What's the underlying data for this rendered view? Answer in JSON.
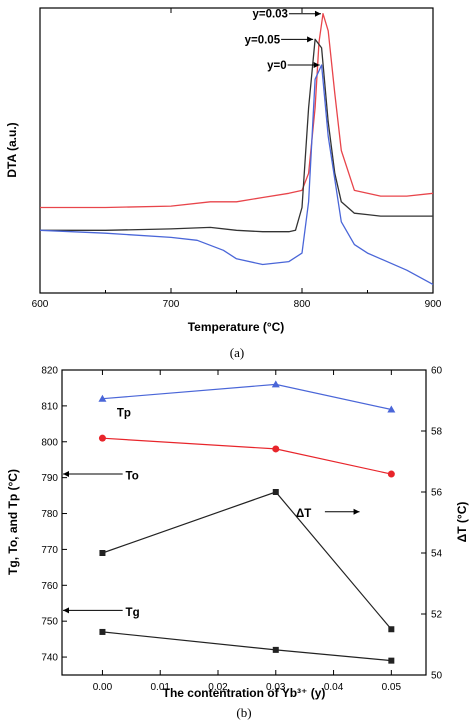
{
  "chart_data": [
    {
      "type": "line",
      "panel_label": "(a)",
      "xlabel": "Temperature (°C)",
      "ylabel": "DTA (a.u.)",
      "xlim": [
        600,
        900
      ],
      "x_ticks": [
        "600",
        "700",
        "800",
        "900"
      ],
      "y_ticks_labeled": false,
      "series": [
        {
          "name": "y=0.03",
          "color": "#e8454b",
          "x": [
            600,
            650,
            700,
            730,
            750,
            770,
            790,
            800,
            805,
            810,
            813,
            816,
            820,
            825,
            830,
            840,
            850,
            860,
            880,
            900
          ],
          "y": [
            0.3,
            0.3,
            0.305,
            0.32,
            0.32,
            0.335,
            0.35,
            0.36,
            0.42,
            0.65,
            0.88,
            0.98,
            0.92,
            0.7,
            0.5,
            0.36,
            0.35,
            0.34,
            0.34,
            0.35
          ]
        },
        {
          "name": "y=0.05",
          "color": "#333333",
          "x": [
            600,
            650,
            700,
            730,
            750,
            770,
            790,
            795,
            800,
            805,
            810,
            815,
            820,
            825,
            830,
            840,
            850,
            860,
            880,
            900
          ],
          "y": [
            0.22,
            0.22,
            0.225,
            0.23,
            0.22,
            0.215,
            0.215,
            0.22,
            0.3,
            0.65,
            0.89,
            0.86,
            0.6,
            0.42,
            0.32,
            0.28,
            0.275,
            0.27,
            0.27,
            0.27
          ]
        },
        {
          "name": "y=0",
          "color": "#4a66d8",
          "x": [
            600,
            650,
            700,
            720,
            740,
            750,
            770,
            790,
            800,
            805,
            810,
            815,
            820,
            830,
            840,
            850,
            860,
            880,
            900
          ],
          "y": [
            0.22,
            0.21,
            0.195,
            0.185,
            0.15,
            0.12,
            0.1,
            0.11,
            0.14,
            0.32,
            0.75,
            0.8,
            0.55,
            0.25,
            0.17,
            0.14,
            0.12,
            0.08,
            0.03
          ]
        }
      ],
      "annotations": [
        {
          "text": "y=0.03",
          "series": "y=0.03"
        },
        {
          "text": "y=0.05",
          "series": "y=0.05"
        },
        {
          "text": "y=0",
          "series": "y=0"
        }
      ]
    },
    {
      "type": "line",
      "panel_label": "(b)",
      "xlabel": "The contentration of Yb³⁺ (y)",
      "ylabel": "Tg, To, and Tp (°C)",
      "y2label": "ΔT (°C)",
      "xlim": [
        -0.007,
        0.056
      ],
      "ylim": [
        735,
        820
      ],
      "y2lim": [
        50,
        60
      ],
      "x_ticks": [
        0.0,
        0.01,
        0.02,
        0.03,
        0.04,
        0.05
      ],
      "x_tick_labels": [
        "0.00",
        "0.01",
        "0.02",
        "0.03",
        "0.04",
        "0.05"
      ],
      "y_ticks": [
        740,
        750,
        760,
        770,
        780,
        790,
        800,
        810,
        820
      ],
      "y2_ticks": [
        50,
        52,
        54,
        56,
        58,
        60
      ],
      "series": [
        {
          "name": "Tp",
          "axis": "left",
          "color": "#4a66d8",
          "marker": "triangle",
          "x": [
            0.0,
            0.03,
            0.05
          ],
          "y": [
            812,
            816,
            809
          ]
        },
        {
          "name": "To",
          "axis": "left",
          "color": "#e8252b",
          "marker": "circle",
          "x": [
            0.0,
            0.03,
            0.05
          ],
          "y": [
            801,
            798,
            791
          ]
        },
        {
          "name": "ΔT",
          "axis": "right",
          "color": "#222222",
          "marker": "square",
          "x": [
            0.0,
            0.03,
            0.05
          ],
          "y": [
            54.0,
            56.0,
            51.5
          ]
        },
        {
          "name": "Tg",
          "axis": "left",
          "color": "#222222",
          "marker": "square",
          "x": [
            0.0,
            0.03,
            0.05
          ],
          "y": [
            747,
            742,
            739
          ]
        }
      ],
      "annotations": [
        {
          "text": "Tp"
        },
        {
          "text": "To"
        },
        {
          "text": "ΔT"
        },
        {
          "text": "Tg"
        }
      ]
    }
  ]
}
